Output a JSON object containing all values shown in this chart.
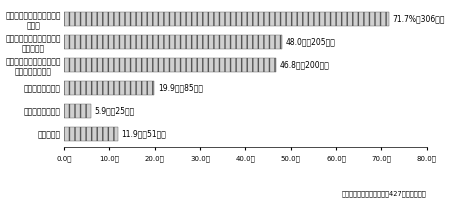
{
  "categories": [
    "貴市区町村のある都道府県\nの計画",
    "総理府「市町村障害者計画\n策定指針」",
    "厚生省関係障害者プランの\n推進方策について",
    "他市区町村の計画",
    "他都道府県の計画",
    "そ　の　他"
  ],
  "values": [
    71.7,
    48.0,
    46.8,
    19.9,
    5.9,
    11.9
  ],
  "value_labels": [
    "71.7%（306件）",
    "48.0％（205件）",
    "46.8％（200件）",
    "19.9％（85件）",
    "5.9％（25件）",
    "11.9％（51件）"
  ],
  "bar_color": "#d0d0d0",
  "bar_hatch": "|||",
  "hatch_color": "#555555",
  "xlim": [
    0,
    80
  ],
  "xticks": [
    0,
    10,
    20,
    30,
    40,
    50,
    60,
    70,
    80
  ],
  "xticklabels": [
    "0.0％",
    "10.0％",
    "20.0％",
    "30.0％",
    "40.0％",
    "50.0％",
    "60.0％",
    "70.0％",
    "80.0％"
  ],
  "footnote": "（市町村障害計画策定済：427市区町村中）",
  "bg_color": "#ffffff",
  "bar_height": 0.6,
  "label_fontsize": 5.5,
  "tick_fontsize": 5.0
}
